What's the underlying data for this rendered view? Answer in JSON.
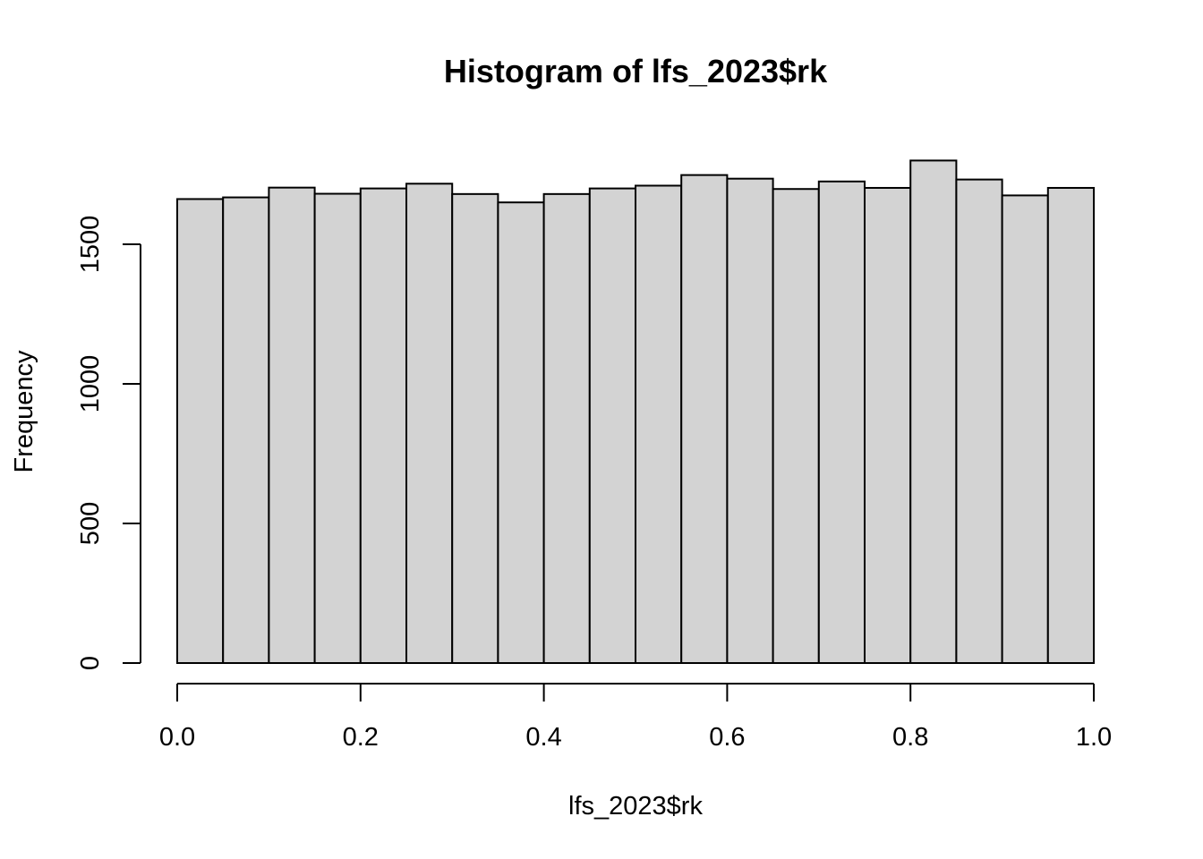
{
  "chart_data": {
    "type": "bar",
    "title": "Histogram of lfs_2023$rk",
    "xlabel": "lfs_2023$rk",
    "ylabel": "Frequency",
    "bar_color": "#d3d3d3",
    "outline_color": "#000000",
    "xlim": [
      0,
      1
    ],
    "ylim": [
      0,
      1800
    ],
    "x_ticks": [
      "0.0",
      "0.2",
      "0.4",
      "0.6",
      "0.8",
      "1.0"
    ],
    "y_ticks": [
      "0",
      "500",
      "1000",
      "1500"
    ],
    "bins": [
      {
        "start": 0.0,
        "end": 0.05,
        "count": 1662
      },
      {
        "start": 0.05,
        "end": 0.1,
        "count": 1668
      },
      {
        "start": 0.1,
        "end": 0.15,
        "count": 1703
      },
      {
        "start": 0.15,
        "end": 0.2,
        "count": 1681
      },
      {
        "start": 0.2,
        "end": 0.25,
        "count": 1700
      },
      {
        "start": 0.25,
        "end": 0.3,
        "count": 1717
      },
      {
        "start": 0.3,
        "end": 0.35,
        "count": 1680
      },
      {
        "start": 0.35,
        "end": 0.4,
        "count": 1650
      },
      {
        "start": 0.4,
        "end": 0.45,
        "count": 1680
      },
      {
        "start": 0.45,
        "end": 0.5,
        "count": 1700
      },
      {
        "start": 0.5,
        "end": 0.55,
        "count": 1710
      },
      {
        "start": 0.55,
        "end": 0.6,
        "count": 1748
      },
      {
        "start": 0.6,
        "end": 0.65,
        "count": 1735
      },
      {
        "start": 0.65,
        "end": 0.7,
        "count": 1698
      },
      {
        "start": 0.7,
        "end": 0.75,
        "count": 1725
      },
      {
        "start": 0.75,
        "end": 0.8,
        "count": 1702
      },
      {
        "start": 0.8,
        "end": 0.85,
        "count": 1800
      },
      {
        "start": 0.85,
        "end": 0.9,
        "count": 1732
      },
      {
        "start": 0.9,
        "end": 0.95,
        "count": 1675
      },
      {
        "start": 0.95,
        "end": 1.0,
        "count": 1702
      }
    ]
  }
}
